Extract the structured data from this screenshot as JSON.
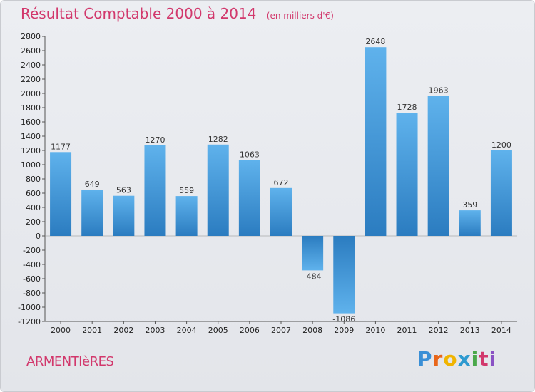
{
  "header": {
    "title": "Résultat Comptable 2000 à 2014",
    "subtitle": "(en milliers d'€)"
  },
  "footer": {
    "city": "ARMENTIèRES",
    "logo_letters": [
      "P",
      "r",
      "o",
      "x",
      "i",
      "t",
      "i"
    ],
    "logo_colors": [
      "#3a8fd6",
      "#e8661a",
      "#f0b400",
      "#2e9ad0",
      "#4aa84a",
      "#d2386c",
      "#8a52c4"
    ]
  },
  "colors": {
    "accent": "#d2386c",
    "bar_light": "#5fb2ec",
    "bar_dark": "#2b7cc0"
  },
  "chart_data": {
    "type": "bar",
    "title": "Résultat Comptable 2000 à 2014",
    "xlabel": "",
    "ylabel": "",
    "categories": [
      "2000",
      "2001",
      "2002",
      "2003",
      "2004",
      "2005",
      "2006",
      "2007",
      "2008",
      "2009",
      "2010",
      "2011",
      "2012",
      "2013",
      "2014"
    ],
    "values": [
      1177,
      649,
      563,
      1270,
      559,
      1282,
      1063,
      672,
      -484,
      -1086,
      2648,
      1728,
      1963,
      359,
      1200
    ],
    "ylim": [
      -1200,
      2800
    ],
    "yticks": [
      -1200,
      -1000,
      -800,
      -600,
      -400,
      -200,
      0,
      200,
      400,
      600,
      800,
      1000,
      1200,
      1400,
      1600,
      1800,
      2000,
      2200,
      2400,
      2600,
      2800
    ],
    "grid": false,
    "legend": "none"
  }
}
